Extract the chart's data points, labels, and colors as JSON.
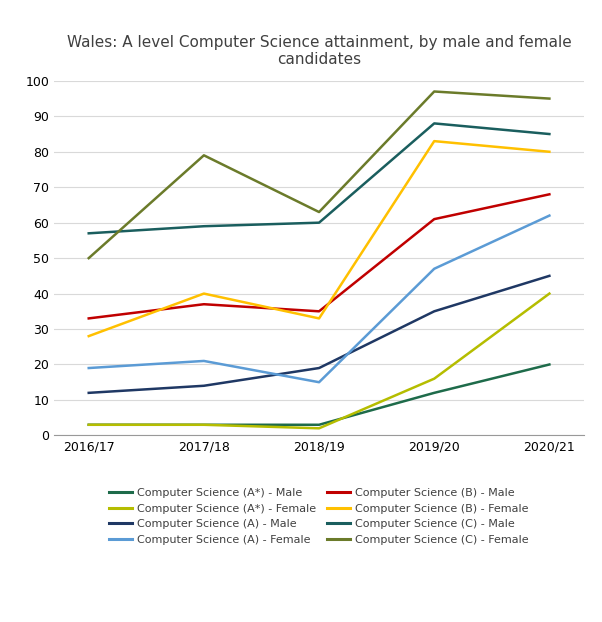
{
  "title": "Wales: A level Computer Science attainment, by male and female\ncandidates",
  "x_labels": [
    "2016/17",
    "2017/18",
    "2018/19",
    "2019/20",
    "2020/21"
  ],
  "series": [
    {
      "name": "Computer Science (A*) - Male",
      "values": [
        3,
        3,
        3,
        12,
        20
      ],
      "color": "#1e6b4a"
    },
    {
      "name": "Computer Science (A*) - Female",
      "values": [
        3,
        3,
        2,
        16,
        40
      ],
      "color": "#b5bd00"
    },
    {
      "name": "Computer Science (A) - Male",
      "values": [
        12,
        14,
        19,
        35,
        45
      ],
      "color": "#1f3864"
    },
    {
      "name": "Computer Science (A) - Female",
      "values": [
        19,
        21,
        15,
        47,
        62
      ],
      "color": "#5b9bd5"
    },
    {
      "name": "Computer Science (B) - Male",
      "values": [
        33,
        37,
        35,
        61,
        68
      ],
      "color": "#c00000"
    },
    {
      "name": "Computer Science (B) - Female",
      "values": [
        28,
        40,
        33,
        83,
        80
      ],
      "color": "#ffc000"
    },
    {
      "name": "Computer Science (C) - Male",
      "values": [
        57,
        59,
        60,
        88,
        85
      ],
      "color": "#1a5e5e"
    },
    {
      "name": "Computer Science (C) - Female",
      "values": [
        50,
        79,
        63,
        97,
        95
      ],
      "color": "#6b7b2a"
    }
  ],
  "legend_order": [
    "Computer Science (A*) - Male",
    "Computer Science (A*) - Female",
    "Computer Science (A) - Male",
    "Computer Science (A) - Female",
    "Computer Science (B) - Male",
    "Computer Science (B) - Female",
    "Computer Science (C) - Male",
    "Computer Science (C) - Female"
  ],
  "ylim": [
    0,
    100
  ],
  "yticks": [
    0,
    10,
    20,
    30,
    40,
    50,
    60,
    70,
    80,
    90,
    100
  ],
  "grid_color": "#d9d9d9",
  "background_color": "#ffffff",
  "title_fontsize": 11,
  "tick_fontsize": 9,
  "legend_fontsize": 8,
  "linewidth": 1.8
}
